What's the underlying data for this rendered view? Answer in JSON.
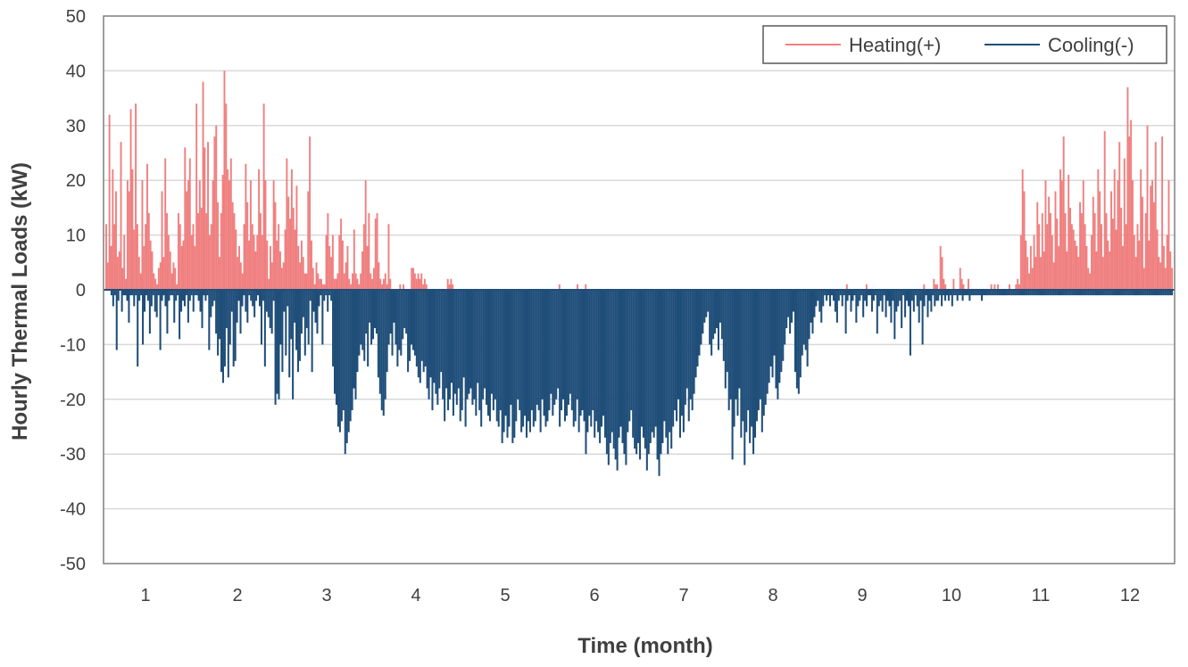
{
  "chart_data": {
    "type": "bar",
    "xlabel": "Time (month)",
    "ylabel": "Hourly Thermal Loads (kW)",
    "ylim": [
      -50,
      50
    ],
    "yticks": [
      50,
      40,
      30,
      20,
      10,
      0,
      -10,
      -20,
      -30,
      -40,
      -50
    ],
    "xticks": [
      "1",
      "2",
      "3",
      "4",
      "5",
      "6",
      "7",
      "8",
      "9",
      "10",
      "11",
      "12"
    ],
    "grid": true,
    "legend_position": "top-right",
    "series": [
      {
        "name": "Heating(+)",
        "color": "#F08080",
        "values": [
          12,
          5,
          32,
          8,
          22,
          12,
          18,
          6,
          7,
          27,
          4,
          10,
          2,
          20,
          18,
          33,
          22,
          11,
          34,
          12,
          6,
          3,
          20,
          8,
          12,
          23,
          14,
          9,
          7,
          3,
          2,
          1,
          4,
          5,
          18,
          6,
          24,
          14,
          10,
          7,
          3,
          5,
          4,
          1,
          14,
          12,
          8,
          9,
          26,
          18,
          20,
          24,
          10,
          12,
          8,
          34,
          14,
          20,
          15,
          38,
          26,
          14,
          27,
          10,
          12,
          20,
          28,
          30,
          16,
          6,
          14,
          21,
          40,
          34,
          22,
          20,
          24,
          16,
          14,
          11,
          6,
          8,
          5,
          3,
          12,
          23,
          16,
          9,
          20,
          12,
          10,
          7,
          10,
          22,
          14,
          10,
          34,
          20,
          9,
          2,
          8,
          5,
          20,
          16,
          9,
          12,
          7,
          4,
          5,
          11,
          24,
          17,
          13,
          22,
          15,
          11,
          19,
          8,
          5,
          9,
          6,
          3,
          3,
          18,
          28,
          9,
          4,
          1,
          5,
          3,
          2,
          2,
          1,
          1,
          10,
          14,
          8,
          6,
          10,
          2,
          2,
          3,
          10,
          13,
          9,
          3,
          5,
          8,
          2,
          1,
          3,
          11,
          3,
          2,
          1,
          3,
          7,
          12,
          20,
          8,
          14,
          3,
          2,
          4,
          13,
          14,
          5,
          2,
          1,
          2,
          3,
          1,
          12,
          2,
          0,
          0,
          0,
          0,
          0,
          1,
          0,
          1,
          0,
          0,
          0,
          0,
          4,
          4,
          3,
          2,
          3,
          2,
          3,
          1,
          2,
          1,
          0,
          0,
          0,
          0,
          0,
          0,
          0,
          0,
          0,
          0,
          0,
          0,
          2,
          1,
          2,
          1,
          0,
          0,
          0,
          0,
          0,
          0,
          0,
          0,
          0,
          0,
          0,
          0,
          0,
          0,
          0,
          0,
          0,
          0,
          0,
          0,
          0,
          0,
          0,
          0,
          0,
          0,
          0,
          0,
          0,
          0,
          0,
          0,
          0,
          0,
          0,
          0,
          0,
          0,
          0,
          0,
          0,
          0,
          0,
          0,
          0,
          0,
          0,
          0,
          0,
          0,
          0,
          0,
          0,
          0,
          0,
          0,
          0,
          0,
          0,
          0,
          0,
          0,
          0,
          0,
          1,
          0,
          0,
          0,
          0,
          0,
          0,
          0,
          0,
          0,
          0,
          1,
          0,
          0,
          0,
          0,
          1,
          0,
          0,
          0,
          0,
          0,
          0,
          0,
          0,
          0,
          0,
          0,
          0,
          0,
          0,
          0,
          0,
          0,
          0,
          0,
          0,
          0,
          0,
          0,
          0,
          0,
          0,
          0,
          0,
          0,
          0,
          0,
          0,
          0,
          0,
          0,
          0,
          0,
          0,
          0,
          0,
          0,
          0,
          0,
          0,
          0,
          0,
          0,
          0,
          0,
          0,
          0,
          0,
          0,
          0,
          0,
          0,
          0,
          0,
          0,
          0,
          0,
          0,
          0,
          0,
          0,
          0,
          0,
          0,
          0,
          0,
          0,
          0,
          0,
          0,
          0,
          0,
          0,
          0,
          0,
          0,
          0,
          0,
          0,
          0,
          0,
          0,
          0,
          0,
          0,
          0,
          0,
          0,
          0,
          0,
          0,
          0,
          0,
          0,
          0,
          0,
          0,
          0,
          0,
          0,
          0,
          0,
          0,
          0,
          0,
          0,
          0,
          0,
          0,
          0,
          0,
          0,
          0,
          0,
          0,
          0,
          0,
          0,
          0,
          0,
          0,
          0,
          0,
          0,
          0,
          0,
          0,
          0,
          0,
          0,
          0,
          0,
          0,
          0,
          0,
          0,
          0,
          0,
          0,
          0,
          0,
          0,
          0,
          0,
          0,
          0,
          0,
          0,
          0,
          0,
          0,
          0,
          0,
          0,
          1,
          0,
          0,
          0,
          0,
          0,
          0,
          0,
          0,
          0,
          0,
          0,
          1,
          0,
          0,
          0,
          0,
          0,
          0,
          0,
          0,
          0,
          0,
          0,
          0,
          0,
          0,
          0,
          0,
          0,
          0,
          0,
          0,
          0,
          0,
          0,
          0,
          0,
          0,
          0,
          0,
          0,
          0,
          0,
          0,
          0,
          0,
          1,
          0,
          0,
          0,
          0,
          0,
          2,
          1,
          1,
          0,
          8,
          6,
          2,
          1,
          0,
          0,
          0,
          0,
          2,
          0,
          0,
          0,
          4,
          2,
          1,
          0,
          0,
          2,
          0,
          0,
          0,
          0,
          0,
          0,
          0,
          0,
          0,
          0,
          0,
          0,
          0,
          1,
          0,
          1,
          0,
          1,
          0,
          0,
          0,
          0,
          0,
          0,
          1,
          0,
          0,
          0,
          1,
          2,
          1,
          10,
          22,
          18,
          9,
          6,
          3,
          8,
          4,
          10,
          6,
          16,
          12,
          6,
          14,
          7,
          20,
          12,
          17,
          14,
          10,
          5,
          18,
          13,
          8,
          22,
          20,
          28,
          14,
          7,
          21,
          15,
          12,
          11,
          9,
          8,
          6,
          16,
          14,
          20,
          12,
          8,
          4,
          3,
          10,
          17,
          14,
          7,
          22,
          18,
          12,
          6,
          29,
          14,
          9,
          7,
          18,
          13,
          22,
          11,
          20,
          27,
          15,
          8,
          24,
          12,
          37,
          28,
          31,
          20,
          10,
          6,
          12,
          9,
          22,
          17,
          4,
          14,
          30,
          9,
          19,
          20,
          16,
          27,
          11,
          6,
          5,
          28,
          8,
          4,
          10,
          20,
          7,
          4
        ]
      },
      {
        "name": "Cooling(-)",
        "color": "#1F4E79",
        "values": [
          0,
          0,
          0,
          -1,
          -3,
          -1,
          -11,
          -2,
          0,
          -4,
          -1,
          -1,
          -2,
          -6,
          -1,
          -1,
          -3,
          -1,
          -14,
          -2,
          -1,
          -10,
          -4,
          -1,
          -2,
          -8,
          -3,
          -1,
          -4,
          -5,
          -1,
          -11,
          -2,
          -1,
          -3,
          -8,
          -2,
          -1,
          -1,
          -6,
          -2,
          -1,
          -9,
          -4,
          -2,
          -3,
          -1,
          -6,
          -2,
          -1,
          -4,
          -1,
          -1,
          -2,
          -4,
          -7,
          -1,
          -2,
          -1,
          -11,
          -5,
          -3,
          -2,
          -8,
          -12,
          -9,
          -15,
          -17,
          -14,
          -7,
          -16,
          -10,
          -4,
          -14,
          -13,
          -6,
          -2,
          -8,
          -3,
          -1,
          -4,
          -6,
          -1,
          -2,
          -3,
          -5,
          -2,
          -1,
          -3,
          -10,
          -2,
          -14,
          -4,
          -5,
          -7,
          -8,
          -2,
          -21,
          -19,
          -20,
          -10,
          -15,
          -4,
          -12,
          -3,
          -16,
          -9,
          -20,
          -6,
          -11,
          -15,
          -13,
          -8,
          -5,
          -12,
          -7,
          -10,
          -2,
          -15,
          -4,
          -6,
          -8,
          -3,
          -1,
          -10,
          -2,
          -1,
          -4,
          -1,
          -2,
          -14,
          -19,
          -21,
          -25,
          -26,
          -24,
          -22,
          -30,
          -28,
          -26,
          -24,
          -22,
          -18,
          -20,
          -15,
          -12,
          -10,
          -11,
          -13,
          -8,
          -14,
          -6,
          -10,
          -9,
          -7,
          -8,
          -16,
          -19,
          -22,
          -23,
          -20,
          -15,
          -10,
          -8,
          -12,
          -6,
          -10,
          -14,
          -11,
          -12,
          -9,
          -7,
          -8,
          -15,
          -13,
          -10,
          -11,
          -12,
          -14,
          -16,
          -17,
          -13,
          -15,
          -14,
          -18,
          -20,
          -16,
          -22,
          -17,
          -19,
          -21,
          -18,
          -15,
          -20,
          -24,
          -18,
          -22,
          -20,
          -17,
          -23,
          -19,
          -21,
          -18,
          -24,
          -22,
          -16,
          -25,
          -20,
          -19,
          -18,
          -21,
          -20,
          -23,
          -17,
          -22,
          -25,
          -20,
          -18,
          -21,
          -23,
          -24,
          -19,
          -22,
          -20,
          -24,
          -25,
          -22,
          -28,
          -26,
          -23,
          -27,
          -25,
          -21,
          -28,
          -27,
          -24,
          -20,
          -22,
          -26,
          -25,
          -23,
          -27,
          -24,
          -26,
          -22,
          -25,
          -24,
          -21,
          -22,
          -26,
          -20,
          -23,
          -25,
          -24,
          -22,
          -19,
          -23,
          -21,
          -20,
          -18,
          -25,
          -22,
          -20,
          -24,
          -23,
          -21,
          -19,
          -22,
          -25,
          -24,
          -20,
          -26,
          -23,
          -22,
          -24,
          -30,
          -26,
          -23,
          -25,
          -22,
          -27,
          -24,
          -26,
          -28,
          -25,
          -23,
          -27,
          -30,
          -32,
          -28,
          -26,
          -29,
          -31,
          -33,
          -27,
          -25,
          -28,
          -30,
          -32,
          -26,
          -24,
          -22,
          -27,
          -29,
          -30,
          -28,
          -31,
          -25,
          -27,
          -29,
          -33,
          -30,
          -28,
          -26,
          -27,
          -25,
          -31,
          -34,
          -30,
          -28,
          -24,
          -27,
          -30,
          -26,
          -29,
          -25,
          -22,
          -24,
          -20,
          -27,
          -23,
          -26,
          -21,
          -18,
          -24,
          -20,
          -22,
          -19,
          -16,
          -14,
          -12,
          -10,
          -8,
          -6,
          -5,
          -4,
          -10,
          -12,
          -9,
          -8,
          -7,
          -11,
          -6,
          -9,
          -13,
          -18,
          -15,
          -22,
          -20,
          -31,
          -25,
          -20,
          -23,
          -18,
          -27,
          -24,
          -32,
          -26,
          -22,
          -28,
          -25,
          -30,
          -27,
          -24,
          -22,
          -20,
          -26,
          -23,
          -21,
          -19,
          -17,
          -14,
          -16,
          -12,
          -18,
          -20,
          -17,
          -15,
          -13,
          -10,
          -7,
          -5,
          -8,
          -6,
          -4,
          -15,
          -18,
          -19,
          -16,
          -12,
          -10,
          -11,
          -14,
          -9,
          -6,
          -8,
          -5,
          -3,
          -2,
          -4,
          -6,
          -3,
          -1,
          -2,
          -1,
          -3,
          -1,
          -2,
          -4,
          -6,
          -2,
          -1,
          -3,
          -1,
          -8,
          -2,
          -1,
          -4,
          -2,
          -1,
          -6,
          -3,
          -2,
          -1,
          -5,
          -2,
          -3,
          -1,
          -1,
          -4,
          -2,
          -1,
          -8,
          -3,
          -2,
          -4,
          -1,
          -5,
          -2,
          -3,
          -6,
          -2,
          -9,
          -4,
          -3,
          -2,
          -7,
          -1,
          -5,
          -2,
          -3,
          -12,
          -2,
          -4,
          -1,
          -3,
          -6,
          -2,
          -10,
          -3,
          -1,
          -5,
          -2,
          -4,
          -1,
          -3,
          -2,
          -2,
          -1,
          -3,
          -1,
          -2,
          -1,
          -2,
          -1,
          -3,
          -1,
          -1,
          -2,
          -1,
          -1,
          -2,
          -1,
          -1,
          -1,
          -2,
          -1,
          -1,
          -1,
          -1,
          -1,
          -1,
          -2,
          -1,
          -1,
          -1,
          -1,
          -1,
          -1,
          -1,
          -1,
          -1,
          -1,
          -1,
          -1,
          -1,
          -1,
          -1,
          -1,
          -1,
          -1,
          -1,
          -1,
          -1,
          -1,
          -1,
          -1,
          -1,
          -1,
          -1,
          -1,
          -1,
          -1,
          -1,
          -1,
          -1,
          -1,
          -1,
          -1,
          -1,
          -1,
          -1,
          -1,
          -1,
          -1,
          -1,
          -1,
          -1,
          -1,
          -1,
          -1,
          -1,
          -1,
          -1,
          -1,
          -1,
          -1,
          -1,
          -1,
          -1,
          -1,
          -1,
          -1,
          -1,
          -1,
          -1,
          -1,
          -1,
          -1,
          -1,
          -1,
          -1,
          -1,
          -1,
          -1,
          -1,
          -1,
          -1,
          -1,
          -1,
          -1,
          -1,
          -1,
          -1,
          -1,
          -1,
          -1,
          -1,
          -1,
          -1,
          -1,
          -1,
          -1,
          -1,
          -1,
          -1,
          -1,
          -1,
          -1,
          -1,
          -1,
          -1,
          -1,
          -1,
          -1,
          -1,
          -1,
          -1,
          -1,
          -1,
          -1,
          -1
        ]
      }
    ]
  }
}
